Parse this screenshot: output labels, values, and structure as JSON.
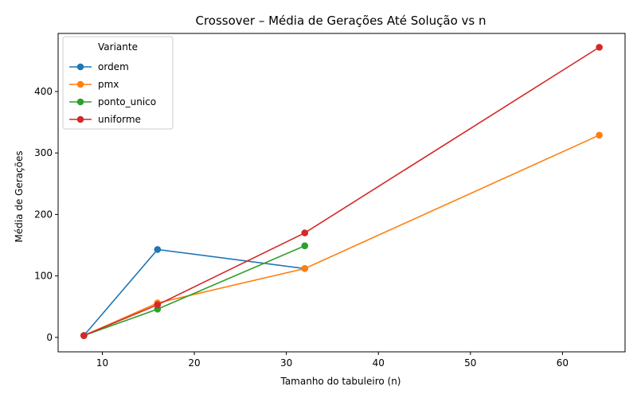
{
  "chart_data": {
    "type": "line",
    "title": "Crossover – Média de Gerações Até Solução vs n",
    "xlabel": "Tamanho do tabuleiro (n)",
    "ylabel": "Média de Gerações",
    "xlim": [
      5.2,
      66.8
    ],
    "ylim": [
      -23.5,
      494.5
    ],
    "xticks": [
      10,
      20,
      30,
      40,
      50,
      60
    ],
    "yticks": [
      0,
      100,
      200,
      300,
      400
    ],
    "grid": false,
    "legend": {
      "title": "Variante",
      "placement": "top-left"
    },
    "series": [
      {
        "name": "ordem",
        "color": "#1f77b4",
        "x": [
          8,
          16,
          32
        ],
        "y": [
          3,
          143,
          112
        ]
      },
      {
        "name": "pmx",
        "color": "#ff7f0e",
        "x": [
          8,
          16,
          32,
          64
        ],
        "y": [
          3,
          56,
          112,
          329
        ]
      },
      {
        "name": "ponto_unico",
        "color": "#2ca02c",
        "x": [
          8,
          16,
          32
        ],
        "y": [
          3,
          46,
          149
        ]
      },
      {
        "name": "uniforme",
        "color": "#d62728",
        "x": [
          8,
          16,
          32,
          64
        ],
        "y": [
          3,
          53,
          170,
          472
        ]
      }
    ]
  }
}
